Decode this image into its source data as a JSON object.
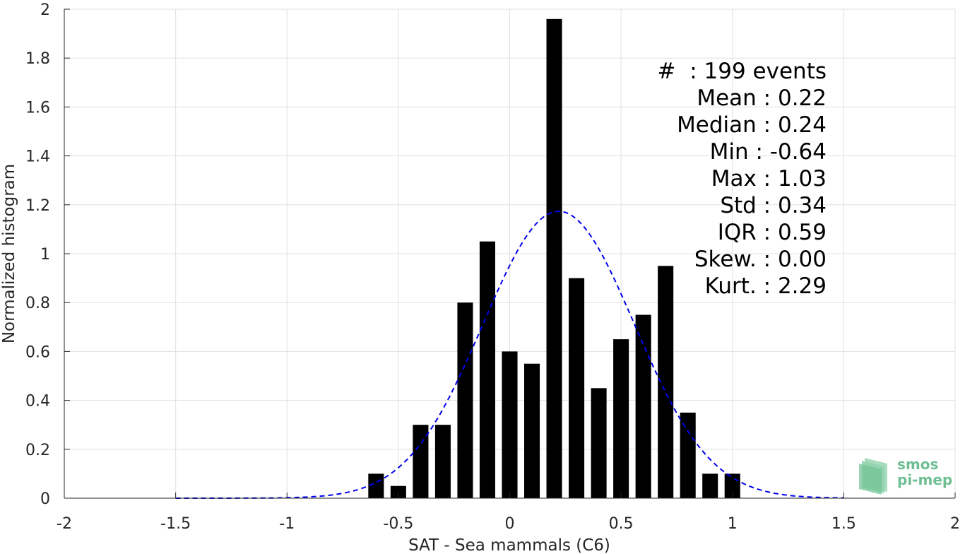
{
  "chart_data": {
    "type": "bar",
    "xlabel": "SAT - Sea mammals (C6)",
    "ylabel": "Normalized histogram",
    "xlim": [
      -2,
      2
    ],
    "ylim": [
      0,
      2
    ],
    "xticks": [
      -2,
      -1.5,
      -1,
      -0.5,
      0,
      0.5,
      1,
      1.5,
      2
    ],
    "yticks": [
      0,
      0.2,
      0.4,
      0.6,
      0.8,
      1,
      1.2,
      1.4,
      1.6,
      1.8,
      2
    ],
    "xtick_labels": [
      "-2",
      "-1.5",
      "-1",
      "-0.5",
      "0",
      "0.5",
      "1",
      "1.5",
      "2"
    ],
    "ytick_labels": [
      "0",
      "0.2",
      "0.4",
      "0.6",
      "0.8",
      "1",
      "1.2",
      "1.4",
      "1.6",
      "1.8",
      "2"
    ],
    "grid": true,
    "bin_width": 0.07,
    "bins": [
      {
        "x": -0.6,
        "y": 0.1
      },
      {
        "x": -0.5,
        "y": 0.05
      },
      {
        "x": -0.4,
        "y": 0.3
      },
      {
        "x": -0.3,
        "y": 0.3
      },
      {
        "x": -0.2,
        "y": 0.8
      },
      {
        "x": -0.1,
        "y": 1.05
      },
      {
        "x": 0.0,
        "y": 0.6
      },
      {
        "x": 0.1,
        "y": 0.55
      },
      {
        "x": 0.2,
        "y": 1.96
      },
      {
        "x": 0.3,
        "y": 0.9
      },
      {
        "x": 0.4,
        "y": 0.45
      },
      {
        "x": 0.5,
        "y": 0.65
      },
      {
        "x": 0.6,
        "y": 0.75
      },
      {
        "x": 0.7,
        "y": 0.95
      },
      {
        "x": 0.8,
        "y": 0.35
      },
      {
        "x": 0.9,
        "y": 0.1
      },
      {
        "x": 1.0,
        "y": 0.1
      }
    ],
    "fit_curve": {
      "style": "dashed",
      "color": "#0000ee",
      "mean": 0.22,
      "std": 0.34,
      "x_range": [
        -1.5,
        1.5
      ]
    },
    "bar_color": "#000000",
    "stats": [
      "#  : 199 events",
      "Mean : 0.22",
      "Median : 0.24",
      "Min : -0.64",
      "Max : 1.03",
      "Std : 0.34",
      "IQR : 0.59",
      "Skew. : 0.00",
      "Kurt. : 2.29"
    ]
  },
  "logo": {
    "line1": "smos",
    "line2": "pi-mep"
  }
}
